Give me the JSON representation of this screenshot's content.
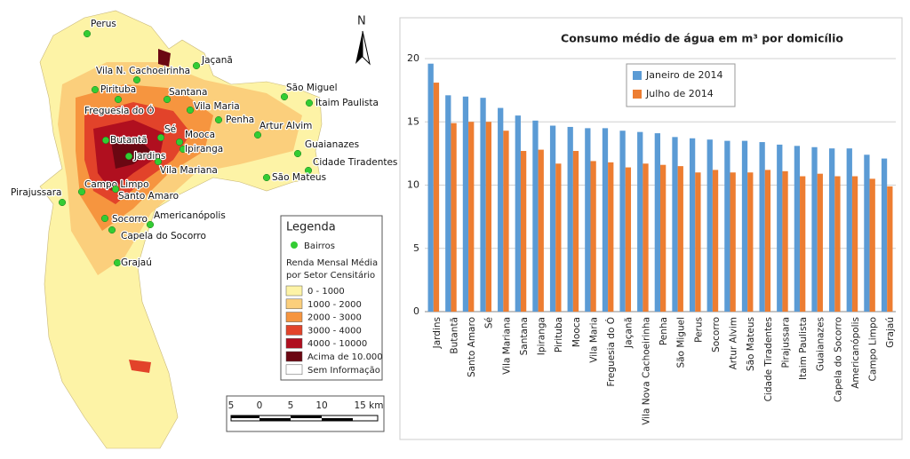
{
  "map": {
    "north": "N",
    "bairros": [
      "Perus",
      "Jaçanã",
      "Vila N. Cachoeirinha",
      "Pirituba",
      "Santana",
      "São Miguel",
      "Itaim Paulista",
      "Freguesia do Ó",
      "Vila Maria",
      "Penha",
      "Artur Alvim",
      "Sé",
      "Mooca",
      "Butantã",
      "Ipiranga",
      "Guaianazes",
      "Jardins",
      "Cidade Tiradentes",
      "Vila Mariana",
      "São Mateus",
      "Campo Limpo",
      "Santo Amaro",
      "Pirajussara",
      "Socorro",
      "Americanópolis",
      "Capela do Socorro",
      "Grajaú"
    ],
    "legend": {
      "title": "Legenda",
      "point_label": "Bairros",
      "point_color": "#33cc33",
      "subtitle": [
        "Renda Mensal Média",
        "por Setor Censitário"
      ],
      "items": [
        {
          "label": "0 - 1000",
          "color": "#fdf3a6"
        },
        {
          "label": "1000 - 2000",
          "color": "#fbcf7c"
        },
        {
          "label": "2000 - 3000",
          "color": "#f6953f"
        },
        {
          "label": "3000 - 4000",
          "color": "#e2432a"
        },
        {
          "label": "4000 - 10000",
          "color": "#b00f1f"
        },
        {
          "label": "Acima de 10.000",
          "color": "#6b0712"
        },
        {
          "label": "Sem Informação",
          "color": "#ffffff"
        }
      ]
    },
    "scale_labels": [
      "5",
      "0",
      "5",
      "10",
      "15 km"
    ]
  },
  "chart_data": {
    "type": "bar",
    "title": "Consumo médio de água em m³ por domicílio",
    "categories": [
      "Jardins",
      "Butantã",
      "Santo Amaro",
      "Sé",
      "Vila Mariana",
      "Santana",
      "Ipiranga",
      "Pirituba",
      "Mooca",
      "Vila Maria",
      "Freguesia do Ó",
      "Jaçanã",
      "Vila Nova Cachoeirinha",
      "Penha",
      "São Miguel",
      "Perus",
      "Socorro",
      "Artur Alvim",
      "São Mateus",
      "Cidade Tiradentes",
      "Pirajussara",
      "Itaim Paulista",
      "Guaianazes",
      "Capela do Socorro",
      "Americanópolis",
      "Campo Limpo",
      "Grajaú"
    ],
    "series": [
      {
        "name": "Janeiro de 2014",
        "color": "#5b9bd5",
        "values": [
          19.6,
          17.1,
          17.0,
          16.9,
          16.1,
          15.5,
          15.1,
          14.7,
          14.6,
          14.5,
          14.5,
          14.3,
          14.2,
          14.1,
          13.8,
          13.7,
          13.6,
          13.5,
          13.5,
          13.4,
          13.2,
          13.1,
          13.0,
          12.9,
          12.9,
          12.4,
          12.1
        ]
      },
      {
        "name": "Julho de 2014",
        "color": "#ed7d31",
        "values": [
          18.1,
          14.9,
          15.0,
          15.0,
          14.3,
          12.7,
          12.8,
          11.7,
          12.7,
          11.9,
          11.8,
          11.4,
          11.7,
          11.6,
          11.5,
          11.0,
          11.2,
          11.0,
          11.0,
          11.2,
          11.1,
          10.7,
          10.9,
          10.7,
          10.7,
          10.5,
          9.9
        ]
      }
    ],
    "ylim": [
      0,
      20
    ],
    "yticks": [
      0,
      5,
      10,
      15,
      20
    ],
    "grid": true
  }
}
